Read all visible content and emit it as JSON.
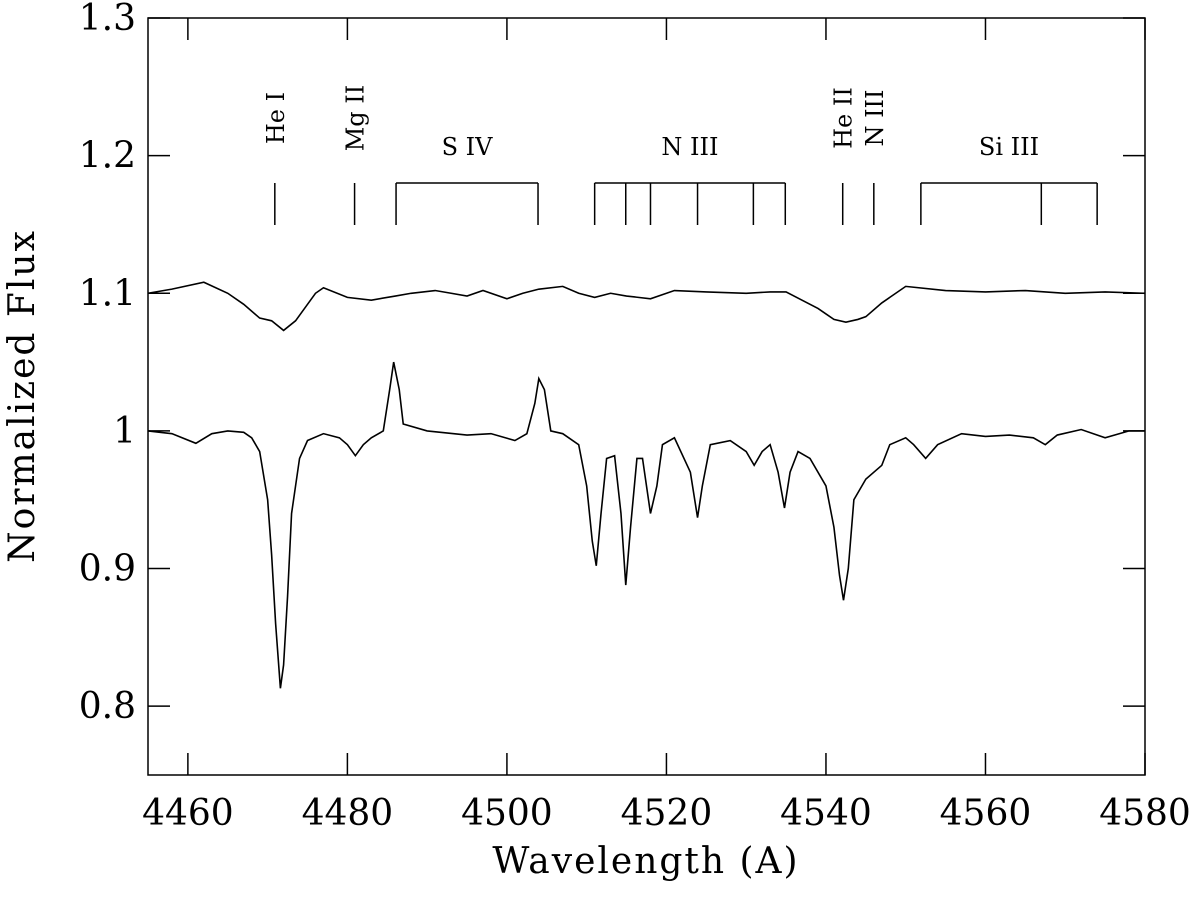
{
  "chart_data": {
    "type": "line",
    "x_label": "Wavelength (A)",
    "y_label": "Normalized Flux",
    "xlim": [
      4455,
      4580
    ],
    "ylim": [
      0.75,
      1.3
    ],
    "xticks": [
      4460,
      4480,
      4500,
      4520,
      4540,
      4560,
      4580
    ],
    "yticks": [
      0.8,
      0.9,
      1,
      1.1,
      1.2,
      1.3
    ],
    "series": [
      {
        "color": "#000000",
        "x": [
          4455,
          4458,
          4462,
          4465,
          4467,
          4469,
          4470.5,
          4472,
          4473.5,
          4475,
          4476,
          4477,
          4480,
          4483,
          4486,
          4488,
          4491,
          4493,
          4495,
          4497,
          4500,
          4502,
          4504,
          4507,
          4509,
          4511,
          4513,
          4515,
          4518,
          4521,
          4525,
          4530,
          4533,
          4535,
          4537,
          4539,
          4540,
          4541,
          4542.5,
          4544,
          4545,
          4547,
          4548,
          4550,
          4555,
          4560,
          4565,
          4570,
          4575,
          4580
        ],
        "values": [
          1.1,
          1.103,
          1.108,
          1.1,
          1.092,
          1.082,
          1.08,
          1.073,
          1.08,
          1.092,
          1.1,
          1.104,
          1.097,
          1.095,
          1.098,
          1.1,
          1.102,
          1.1,
          1.098,
          1.102,
          1.096,
          1.1,
          1.103,
          1.105,
          1.1,
          1.097,
          1.1,
          1.098,
          1.096,
          1.102,
          1.101,
          1.1,
          1.101,
          1.101,
          1.095,
          1.089,
          1.085,
          1.081,
          1.079,
          1.081,
          1.083,
          1.093,
          1.097,
          1.105,
          1.102,
          1.101,
          1.102,
          1.1,
          1.101,
          1.1
        ]
      },
      {
        "color": "#000000",
        "x": [
          4455,
          4458,
          4461,
          4463,
          4465,
          4467,
          4468,
          4469,
          4470,
          4470.5,
          4471,
          4471.6,
          4472,
          4472.5,
          4473,
          4474,
          4475,
          4477,
          4479,
          4480,
          4481,
          4482,
          4483,
          4484.5,
          4485.3,
          4485.8,
          4486.5,
          4487,
          4490,
          4495,
          4498,
          4501,
          4502.5,
          4503.5,
          4504,
          4504.7,
          4505.5,
          4507,
          4509,
          4510,
          4510.7,
          4511.2,
          4511.8,
          4512.5,
          4513.5,
          4514.3,
          4514.9,
          4515.5,
          4516.3,
          4517,
          4518,
          4518.8,
          4519.5,
          4521,
          4523,
          4523.9,
          4524.5,
          4525.5,
          4528,
          4530,
          4531,
          4532,
          4533,
          4534,
          4534.8,
          4535.5,
          4536.5,
          4538,
          4540,
          4541,
          4541.7,
          4542.2,
          4542.8,
          4543.5,
          4545,
          4547,
          4548,
          4550,
          4551,
          4552.5,
          4554,
          4557,
          4560,
          4563,
          4566,
          4567.5,
          4569,
          4572,
          4575,
          4578,
          4580
        ],
        "values": [
          1.0,
          0.998,
          0.991,
          0.998,
          1.0,
          0.999,
          0.995,
          0.985,
          0.95,
          0.91,
          0.86,
          0.813,
          0.83,
          0.88,
          0.94,
          0.98,
          0.993,
          0.998,
          0.995,
          0.99,
          0.982,
          0.99,
          0.995,
          1.0,
          1.03,
          1.05,
          1.03,
          1.005,
          1.0,
          0.997,
          0.998,
          0.993,
          0.998,
          1.02,
          1.038,
          1.03,
          1.0,
          0.998,
          0.99,
          0.96,
          0.92,
          0.902,
          0.94,
          0.98,
          0.982,
          0.94,
          0.888,
          0.93,
          0.98,
          0.98,
          0.94,
          0.96,
          0.99,
          0.995,
          0.97,
          0.937,
          0.96,
          0.99,
          0.993,
          0.985,
          0.975,
          0.985,
          0.99,
          0.97,
          0.944,
          0.97,
          0.985,
          0.98,
          0.96,
          0.93,
          0.895,
          0.877,
          0.9,
          0.95,
          0.965,
          0.975,
          0.99,
          0.995,
          0.99,
          0.98,
          0.99,
          0.998,
          0.996,
          0.997,
          0.995,
          0.99,
          0.997,
          1.001,
          0.995,
          1.0,
          1.0
        ]
      }
    ],
    "annotations": [
      {
        "label": "He I",
        "wavelengths": [
          4470.9
        ]
      },
      {
        "label": "Mg II",
        "wavelengths": [
          4480.9
        ]
      },
      {
        "label": "S IV",
        "wavelengths": [
          4486.1,
          4503.9
        ]
      },
      {
        "label": "N III",
        "wavelengths": [
          4511.0,
          4514.9,
          4518.0,
          4523.9,
          4530.9,
          4534.9
        ]
      },
      {
        "label": "He II",
        "wavelengths": [
          4542.1
        ]
      },
      {
        "label": "N III",
        "wavelengths": [
          4546.0
        ]
      },
      {
        "label": "Si III",
        "wavelengths": [
          4551.9,
          4567.0,
          4574.0
        ]
      }
    ]
  }
}
